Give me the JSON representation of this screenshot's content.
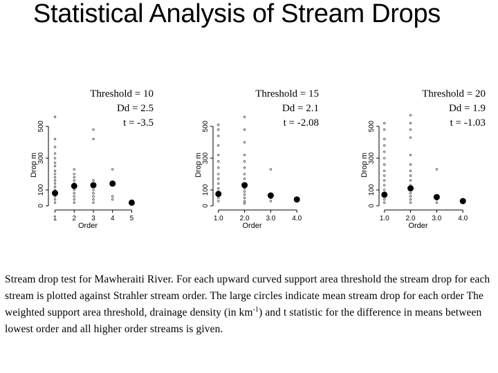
{
  "title": "Statistical Analysis of Stream Drops",
  "caption": {
    "part1": "Stream drop test for Mawheraiti River.  For each upward curved support area threshold the stream drop for each stream is plotted against Strahler stream order.  The large circles indicate mean stream drop for each order The weighted support area threshold, drainage density (in km",
    "sup": "-1",
    "part2": ") and t statistic for the difference in means between lowest order and all higher order streams is given."
  },
  "chart_data": [
    {
      "type": "scatter",
      "xlabel": "Order",
      "ylabel": "Drop m",
      "xticks": [
        1,
        2,
        3,
        4,
        5
      ],
      "xtick_labels": [
        "1",
        "2",
        "3",
        "4",
        "5"
      ],
      "yticks": [
        0,
        100,
        300,
        500
      ],
      "ytick_labels": [
        "0",
        "100",
        "300",
        "500"
      ],
      "xlim": [
        0.8,
        5.2
      ],
      "ylim": [
        0,
        600
      ],
      "stats": [
        "Threshold = 10",
        "Dd = 2.5",
        "t = -3.5"
      ],
      "means": [
        [
          1,
          80
        ],
        [
          2,
          125
        ],
        [
          3,
          130
        ],
        [
          4,
          140
        ],
        [
          5,
          20
        ]
      ],
      "points": [
        [
          1,
          560
        ],
        [
          1,
          420
        ],
        [
          1,
          370
        ],
        [
          1,
          330
        ],
        [
          1,
          300
        ],
        [
          1,
          270
        ],
        [
          1,
          250
        ],
        [
          1,
          220
        ],
        [
          1,
          200
        ],
        [
          1,
          180
        ],
        [
          1,
          160
        ],
        [
          1,
          140
        ],
        [
          1,
          120
        ],
        [
          1,
          100
        ],
        [
          1,
          80
        ],
        [
          1,
          60
        ],
        [
          1,
          40
        ],
        [
          1,
          20
        ],
        [
          2,
          230
        ],
        [
          2,
          200
        ],
        [
          2,
          180
        ],
        [
          2,
          160
        ],
        [
          2,
          140
        ],
        [
          2,
          120
        ],
        [
          2,
          100
        ],
        [
          2,
          80
        ],
        [
          2,
          60
        ],
        [
          2,
          40
        ],
        [
          2,
          20
        ],
        [
          3,
          480
        ],
        [
          3,
          420
        ],
        [
          3,
          160
        ],
        [
          3,
          120
        ],
        [
          3,
          100
        ],
        [
          3,
          80
        ],
        [
          3,
          60
        ],
        [
          3,
          40
        ],
        [
          3,
          20
        ],
        [
          4,
          230
        ],
        [
          4,
          60
        ],
        [
          4,
          40
        ],
        [
          5,
          20
        ]
      ]
    },
    {
      "type": "scatter",
      "xlabel": "Order",
      "ylabel": "Drop m",
      "xticks": [
        1,
        2,
        3,
        4
      ],
      "xtick_labels": [
        "1.0",
        "2.0",
        "3.0",
        "4.0"
      ],
      "yticks": [
        0,
        100,
        300,
        500
      ],
      "ytick_labels": [
        "0",
        "100",
        "300",
        "500"
      ],
      "xlim": [
        0.9,
        4.1
      ],
      "ylim": [
        0,
        600
      ],
      "stats": [
        "Threshold = 15",
        "Dd = 2.1",
        "t = -2.08"
      ],
      "means": [
        [
          1,
          75
        ],
        [
          2,
          130
        ],
        [
          3,
          65
        ],
        [
          4,
          40
        ]
      ],
      "points": [
        [
          1,
          510
        ],
        [
          1,
          480
        ],
        [
          1,
          440
        ],
        [
          1,
          380
        ],
        [
          1,
          320
        ],
        [
          1,
          280
        ],
        [
          1,
          240
        ],
        [
          1,
          200
        ],
        [
          1,
          170
        ],
        [
          1,
          140
        ],
        [
          1,
          110
        ],
        [
          1,
          90
        ],
        [
          1,
          70
        ],
        [
          1,
          50
        ],
        [
          1,
          30
        ],
        [
          2,
          560
        ],
        [
          2,
          480
        ],
        [
          2,
          400
        ],
        [
          2,
          320
        ],
        [
          2,
          280
        ],
        [
          2,
          240
        ],
        [
          2,
          200
        ],
        [
          2,
          170
        ],
        [
          2,
          140
        ],
        [
          2,
          110
        ],
        [
          2,
          90
        ],
        [
          2,
          70
        ],
        [
          2,
          50
        ],
        [
          2,
          30
        ],
        [
          2,
          15
        ],
        [
          3,
          230
        ],
        [
          3,
          70
        ],
        [
          3,
          50
        ],
        [
          3,
          30
        ],
        [
          4,
          40
        ]
      ]
    },
    {
      "type": "scatter",
      "xlabel": "Order",
      "ylabel": "Drop m",
      "xticks": [
        1,
        2,
        3,
        4
      ],
      "xtick_labels": [
        "1.0",
        "2.0",
        "3.0",
        "4.0"
      ],
      "yticks": [
        0,
        100,
        300,
        500
      ],
      "ytick_labels": [
        "0",
        "100",
        "300",
        "500"
      ],
      "xlim": [
        0.9,
        4.1
      ],
      "ylim": [
        0,
        600
      ],
      "stats": [
        "Threshold = 20",
        "Dd = 1.9",
        "t = -1.03"
      ],
      "means": [
        [
          1,
          70
        ],
        [
          2,
          110
        ],
        [
          3,
          55
        ],
        [
          4,
          30
        ]
      ],
      "points": [
        [
          1,
          520
        ],
        [
          1,
          480
        ],
        [
          1,
          420
        ],
        [
          1,
          380
        ],
        [
          1,
          340
        ],
        [
          1,
          300
        ],
        [
          1,
          260
        ],
        [
          1,
          220
        ],
        [
          1,
          190
        ],
        [
          1,
          160
        ],
        [
          1,
          130
        ],
        [
          1,
          100
        ],
        [
          1,
          80
        ],
        [
          1,
          60
        ],
        [
          1,
          40
        ],
        [
          1,
          20
        ],
        [
          2,
          570
        ],
        [
          2,
          520
        ],
        [
          2,
          480
        ],
        [
          2,
          430
        ],
        [
          2,
          320
        ],
        [
          2,
          260
        ],
        [
          2,
          220
        ],
        [
          2,
          190
        ],
        [
          2,
          160
        ],
        [
          2,
          130
        ],
        [
          2,
          100
        ],
        [
          2,
          80
        ],
        [
          2,
          60
        ],
        [
          2,
          40
        ],
        [
          2,
          20
        ],
        [
          3,
          230
        ],
        [
          3,
          60
        ],
        [
          3,
          40
        ],
        [
          3,
          20
        ],
        [
          4,
          30
        ]
      ]
    }
  ]
}
